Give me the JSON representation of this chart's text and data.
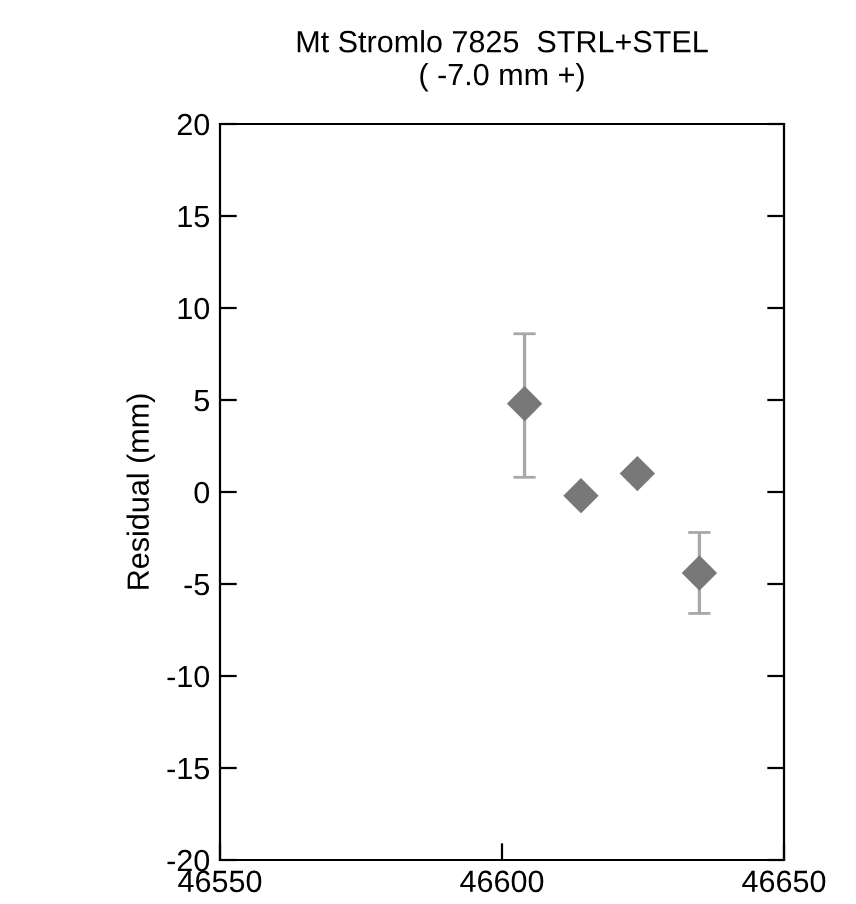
{
  "chart_data": {
    "type": "scatter",
    "title": "Mt Stromlo 7825  STRL+STEL\n( -7.0 mm +)",
    "ylabel": "Residual (mm)",
    "x": [
      46604,
      46614,
      46624,
      46635
    ],
    "series": [
      {
        "color": "#787878",
        "values": [
          4.8,
          -0.2,
          1.0,
          -4.4
        ],
        "errors": [
          [
            0.8,
            8.6
          ],
          null,
          [
            0.7,
            1.3
          ],
          [
            -6.6,
            -2.2
          ]
        ]
      }
    ],
    "xlim": [
      46550,
      46650
    ],
    "xticks": [
      46550,
      46600,
      46650
    ],
    "ylim": [
      -20,
      20
    ],
    "yticks": [
      -20,
      -15,
      -10,
      -5,
      0,
      5,
      10,
      15,
      20
    ],
    "marker": "diamond",
    "grid": false,
    "legend": false
  }
}
